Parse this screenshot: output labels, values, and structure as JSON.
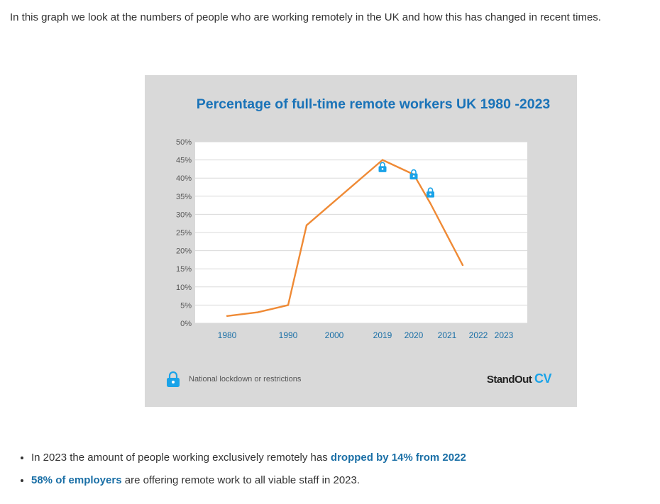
{
  "intro_text": "In this graph we look at the numbers of people who are working remotely in the UK and how this has changed in recent times.",
  "legend_text": "National lockdown or restrictions",
  "brand": {
    "part1": "StandOut",
    "part2": "CV"
  },
  "colors": {
    "line": "#ef8a35",
    "title": "#1a73b8",
    "axis_label": "#1a6fa6",
    "lock_icon": "#1aa3e8",
    "background": "#d9d9d9",
    "plot": "#ffffff"
  },
  "bullets": [
    {
      "pre": "In 2023 the amount of people working exclusively remotely has ",
      "bold": "dropped by 14% from 2022",
      "post": ""
    },
    {
      "pre": "",
      "bold": "58% of employers",
      "post": " are offering remote work to all viable staff in 2023."
    }
  ],
  "chart_data": {
    "type": "line",
    "title": "Percentage of full-time remote workers UK 1980 -2023",
    "xlabel": "",
    "ylabel": "",
    "categories": [
      "1980",
      "1990",
      "2000",
      "2019",
      "2020",
      "2021",
      "2022",
      "2023"
    ],
    "y_ticks": [
      "0%",
      "5%",
      "10%",
      "15%",
      "20%",
      "25%",
      "30%",
      "35%",
      "40%",
      "45%",
      "50%"
    ],
    "ylim": [
      0,
      50
    ],
    "grid": true,
    "series": [
      {
        "values": [
          {
            "x": 1980,
            "y": 2
          },
          {
            "x": 1985,
            "y": 3
          },
          {
            "x": 1990,
            "y": 5
          },
          {
            "x": 1994,
            "y": 27
          },
          {
            "x": 2019,
            "y": 45
          },
          {
            "x": 2020,
            "y": 41
          },
          {
            "x": 2020.5,
            "y": 33
          },
          {
            "x": 2021.5,
            "y": 16
          }
        ]
      }
    ],
    "annotations": [
      {
        "icon": "lock-icon",
        "x": 2019,
        "y": 43
      },
      {
        "icon": "lock-icon",
        "x": 2020,
        "y": 41
      },
      {
        "icon": "lock-icon",
        "x": 2020.5,
        "y": 36
      }
    ]
  }
}
